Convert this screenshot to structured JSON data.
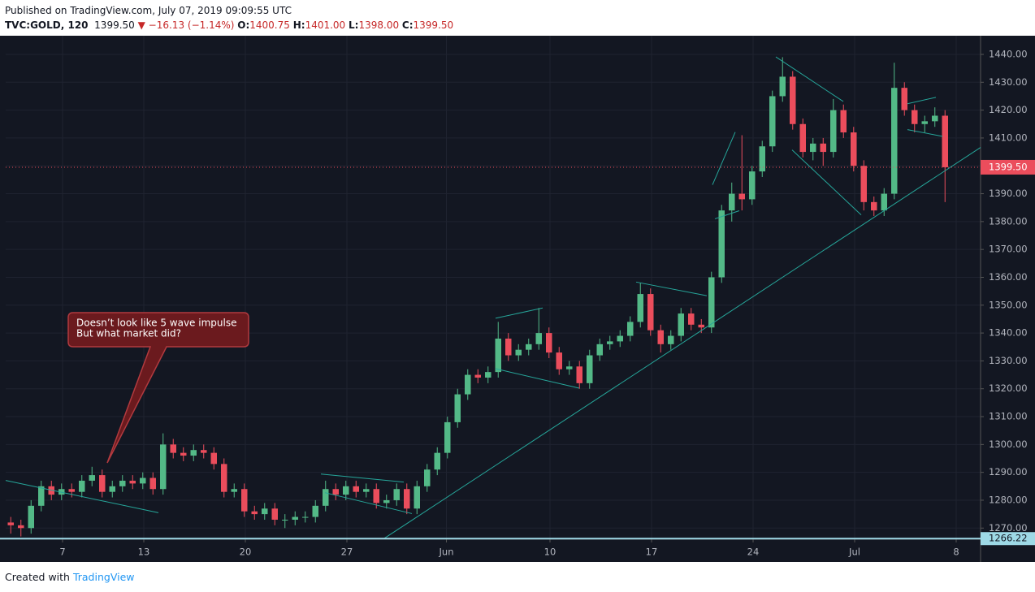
{
  "header": {
    "published": "Published on TradingView.com, July 07, 2019 09:09:55 UTC",
    "symbol": "TVC:GOLD, 120",
    "price": "1399.50",
    "change": "▼ −16.13 (−1.14%)",
    "ohlc": [
      "O:",
      "1400.75",
      "H:",
      "1401.00",
      "L:",
      "1398.00",
      "C:",
      "1399.50"
    ]
  },
  "footer": {
    "created": "Created with",
    "brand": "TradingView"
  },
  "chart_data": {
    "type": "candlestick",
    "up_color": "#53b987",
    "down_color": "#eb4d5c",
    "grid": true,
    "xlim": [
      0,
      48
    ],
    "ylim": [
      1266,
      1446.7
    ],
    "xticks": [
      {
        "value": 2.8,
        "label": "7"
      },
      {
        "value": 6.8,
        "label": "13"
      },
      {
        "value": 11.8,
        "label": "20"
      },
      {
        "value": 16.8,
        "label": "27"
      },
      {
        "value": 21.7,
        "label": "Jun"
      },
      {
        "value": 26.8,
        "label": "10"
      },
      {
        "value": 31.8,
        "label": "17"
      },
      {
        "value": 36.8,
        "label": "24"
      },
      {
        "value": 41.8,
        "label": "Jul"
      },
      {
        "value": 46.8,
        "label": "8"
      }
    ],
    "yticks": [
      {
        "value": 1270,
        "label": "1270.00"
      },
      {
        "value": 1280,
        "label": "1280.00"
      },
      {
        "value": 1290,
        "label": "1290.00"
      },
      {
        "value": 1300,
        "label": "1300.00"
      },
      {
        "value": 1310,
        "label": "1310.00"
      },
      {
        "value": 1320,
        "label": "1320.00"
      },
      {
        "value": 1330,
        "label": "1330.00"
      },
      {
        "value": 1340,
        "label": "1340.00"
      },
      {
        "value": 1350,
        "label": "1350.00"
      },
      {
        "value": 1360,
        "label": "1360.00"
      },
      {
        "value": 1370,
        "label": "1370.00"
      },
      {
        "value": 1380,
        "label": "1380.00"
      },
      {
        "value": 1390,
        "label": "1390.00"
      },
      {
        "value": 1400,
        "label": "1400.00"
      },
      {
        "value": 1410,
        "label": "1410.00"
      },
      {
        "value": 1420,
        "label": "1420.00"
      },
      {
        "value": 1430,
        "label": "1430.00"
      },
      {
        "value": 1440,
        "label": "1440.00"
      }
    ],
    "x": [
      0.25,
      0.75,
      1.25,
      1.75,
      2.25,
      2.75,
      3.25,
      3.75,
      4.25,
      4.75,
      5.25,
      5.75,
      6.25,
      6.75,
      7.25,
      7.75,
      8.25,
      8.75,
      9.25,
      9.75,
      10.25,
      10.75,
      11.25,
      11.75,
      12.25,
      12.75,
      13.25,
      13.75,
      14.25,
      14.75,
      15.25,
      15.75,
      16.25,
      16.75,
      17.25,
      17.75,
      18.25,
      18.75,
      19.25,
      19.75,
      20.25,
      20.75,
      21.25,
      21.75,
      22.25,
      22.75,
      23.25,
      23.75,
      24.25,
      24.75,
      25.25,
      25.75,
      26.25,
      26.75,
      27.25,
      27.75,
      28.25,
      28.75,
      29.25,
      29.75,
      30.25,
      30.75,
      31.25,
      31.75,
      32.25,
      32.75,
      33.25,
      33.75,
      34.25,
      34.75,
      35.25,
      35.75,
      36.25,
      36.75,
      37.25,
      37.75,
      38.25,
      38.75,
      39.25,
      39.75,
      40.25,
      40.75,
      41.25,
      41.75,
      42.25,
      42.75,
      43.25,
      43.75,
      44.25,
      44.75,
      45.25,
      45.75,
      46.25
    ],
    "open": [
      1272,
      1271,
      1270,
      1278,
      1285,
      1282,
      1284,
      1283,
      1287,
      1289,
      1283,
      1285,
      1287,
      1286,
      1288,
      1284,
      1300,
      1297,
      1296,
      1298,
      1297,
      1293,
      1283,
      1284,
      1276,
      1275,
      1277,
      1273,
      1273,
      1274,
      1274,
      1278,
      1284,
      1282,
      1285,
      1283,
      1284,
      1279,
      1280,
      1284,
      1277,
      1285,
      1291,
      1297,
      1308,
      1318,
      1325,
      1324,
      1326,
      1338,
      1332,
      1334,
      1336,
      1340,
      1333,
      1327,
      1328,
      1322,
      1332,
      1336,
      1337,
      1339,
      1344,
      1354,
      1341,
      1336,
      1339,
      1347,
      1343,
      1342,
      1360,
      1384,
      1390,
      1388,
      1398,
      1407,
      1425,
      1432,
      1415,
      1405,
      1408,
      1405,
      1420,
      1412,
      1400,
      1387,
      1384,
      1390,
      1428,
      1420,
      1415,
      1416,
      1418
    ],
    "high": [
      1274,
      1273,
      1280,
      1287,
      1287,
      1286,
      1286,
      1289,
      1292,
      1291,
      1287,
      1289,
      1289,
      1290,
      1290,
      1304,
      1302,
      1299,
      1300,
      1300,
      1299,
      1295,
      1286,
      1286,
      1278,
      1279,
      1279,
      1275,
      1276,
      1276,
      1280,
      1287,
      1286,
      1287,
      1287,
      1286,
      1286,
      1282,
      1286,
      1286,
      1287,
      1293,
      1299,
      1310,
      1320,
      1327,
      1327,
      1328,
      1344,
      1340,
      1336,
      1338,
      1349,
      1342,
      1335,
      1330,
      1330,
      1334,
      1338,
      1339,
      1341,
      1346,
      1358,
      1356,
      1343,
      1341,
      1349,
      1349,
      1345,
      1362,
      1386,
      1394,
      1411,
      1400,
      1409,
      1427,
      1439,
      1434,
      1417,
      1410,
      1410,
      1424,
      1422,
      1414,
      1402,
      1389,
      1392,
      1437,
      1430,
      1422,
      1418,
      1421,
      1420
    ],
    "low": [
      1268,
      1267,
      1268,
      1276,
      1280,
      1280,
      1281,
      1281,
      1285,
      1281,
      1281,
      1283,
      1284,
      1284,
      1282,
      1282,
      1295,
      1294,
      1294,
      1295,
      1291,
      1281,
      1281,
      1274,
      1273,
      1273,
      1271,
      1270,
      1271,
      1272,
      1272,
      1276,
      1280,
      1280,
      1281,
      1281,
      1277,
      1277,
      1278,
      1275,
      1275,
      1283,
      1289,
      1295,
      1306,
      1316,
      1322,
      1322,
      1324,
      1330,
      1330,
      1332,
      1334,
      1331,
      1325,
      1325,
      1320,
      1320,
      1330,
      1334,
      1335,
      1337,
      1342,
      1339,
      1333,
      1334,
      1337,
      1341,
      1340,
      1340,
      1358,
      1380,
      1384,
      1386,
      1396,
      1405,
      1423,
      1413,
      1403,
      1402,
      1400,
      1403,
      1410,
      1398,
      1384,
      1382,
      1382,
      1388,
      1418,
      1412,
      1412,
      1414,
      1387
    ],
    "close": [
      1271,
      1270,
      1278,
      1285,
      1282,
      1284,
      1283,
      1287,
      1289,
      1283,
      1285,
      1287,
      1286,
      1288,
      1284,
      1300,
      1297,
      1296,
      1298,
      1297,
      1293,
      1283,
      1284,
      1276,
      1275,
      1277,
      1273,
      1273,
      1274,
      1274,
      1278,
      1284,
      1282,
      1285,
      1283,
      1284,
      1279,
      1280,
      1284,
      1277,
      1285,
      1291,
      1297,
      1308,
      1318,
      1325,
      1324,
      1326,
      1338,
      1332,
      1334,
      1336,
      1340,
      1333,
      1327,
      1328,
      1322,
      1332,
      1336,
      1337,
      1339,
      1344,
      1354,
      1341,
      1336,
      1339,
      1347,
      1343,
      1342,
      1360,
      1384,
      1390,
      1388,
      1398,
      1407,
      1425,
      1432,
      1415,
      1405,
      1408,
      1405,
      1420,
      1412,
      1400,
      1387,
      1384,
      1390,
      1428,
      1420,
      1415,
      1416,
      1418,
      1399.5
    ],
    "trendline_color": "#26a69a",
    "trendlines": [
      {
        "x": [
          18.64,
          48
        ],
        "y": [
          1266.3,
          1406.6
        ]
      },
      {
        "x": [
          0,
          7.52
        ],
        "y": [
          1287.1,
          1275.5
        ]
      },
      {
        "x": [
          15.52,
          19.6
        ],
        "y": [
          1289.4,
          1286.5
        ]
      },
      {
        "x": [
          15.72,
          20
        ],
        "y": [
          1282.7,
          1275.2
        ]
      },
      {
        "x": [
          24.12,
          26.44
        ],
        "y": [
          1345.3,
          1349.0
        ]
      },
      {
        "x": [
          24.12,
          28.24
        ],
        "y": [
          1327.2,
          1320.2
        ]
      },
      {
        "x": [
          31.04,
          34.52
        ],
        "y": [
          1358.3,
          1353.4
        ]
      },
      {
        "x": [
          34.8,
          35.92
        ],
        "y": [
          1393.2,
          1412.1
        ]
      },
      {
        "x": [
          34.92,
          36.12
        ],
        "y": [
          1381.0,
          1383.9
        ]
      },
      {
        "x": [
          37.92,
          41.24
        ],
        "y": [
          1439.1,
          1423.1
        ]
      },
      {
        "x": [
          38.72,
          42.12
        ],
        "y": [
          1405.7,
          1382.4
        ]
      },
      {
        "x": [
          44.4,
          45.8
        ],
        "y": [
          1422.3,
          1424.6
        ]
      },
      {
        "x": [
          44.4,
          46.12
        ],
        "y": [
          1413.0,
          1410.6
        ]
      }
    ],
    "hline": {
      "value": 1266.22,
      "label": "1266.22",
      "color": "#9ed9e6"
    },
    "last_price": {
      "value": 1399.5,
      "label": "1399.50",
      "color": "#eb4d5c"
    },
    "annotation": [
      "Doesn’t look like 5 wave impulse",
      "But what market did?"
    ]
  }
}
